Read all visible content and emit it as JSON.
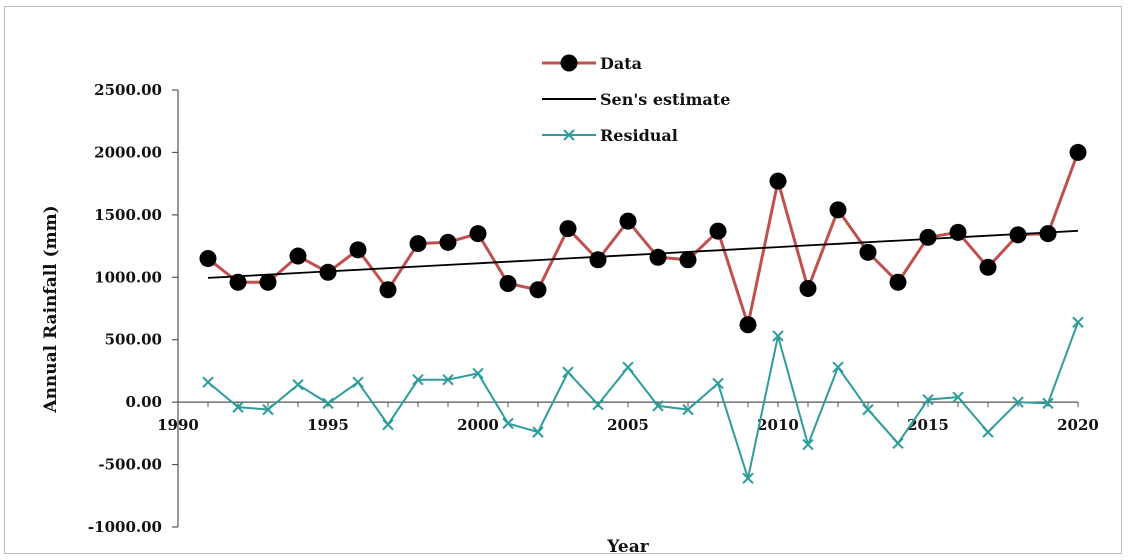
{
  "chart_data": {
    "type": "line",
    "xlabel": "Year",
    "ylabel": "Annual Rainfall (mm)",
    "xlim": [
      1990,
      2020
    ],
    "ylim": [
      -1000,
      2500
    ],
    "x_ticks": [
      1990,
      1995,
      2000,
      2005,
      2010,
      2015,
      2020
    ],
    "x_tick_labels": [
      "1990",
      "1995",
      "2000",
      "2005",
      "2010",
      "2015",
      "2020"
    ],
    "y_ticks": [
      -1000,
      -500,
      0,
      500,
      1000,
      1500,
      2000,
      2500
    ],
    "y_tick_labels": [
      "-1000.00",
      "-500.00",
      "0.00",
      "500.00",
      "1000.00",
      "1500.00",
      "2000.00",
      "2500.00"
    ],
    "grid": false,
    "legend_position": "top-center",
    "x": [
      1991,
      1992,
      1993,
      1994,
      1995,
      1996,
      1997,
      1998,
      1999,
      2000,
      2001,
      2002,
      2003,
      2004,
      2005,
      2006,
      2007,
      2008,
      2009,
      2010,
      2011,
      2012,
      2013,
      2014,
      2015,
      2016,
      2017,
      2018,
      2019,
      2020
    ],
    "series": [
      {
        "name": "Data",
        "color": "#c0504d",
        "marker": "circle",
        "marker_color": "#000000",
        "values": [
          1150,
          960,
          960,
          1170,
          1040,
          1220,
          900,
          1270,
          1280,
          1350,
          950,
          900,
          1390,
          1140,
          1450,
          1160,
          1140,
          1370,
          620,
          1770,
          910,
          1540,
          1200,
          960,
          1320,
          1360,
          1080,
          1340,
          1350,
          2000
        ]
      },
      {
        "name": "Sen's estimate",
        "color": "#000000",
        "marker": "none",
        "values": [
          995,
          1008,
          1021,
          1034,
          1047,
          1060,
          1073,
          1086,
          1099,
          1112,
          1125,
          1138,
          1151,
          1164,
          1177,
          1190,
          1203,
          1216,
          1229,
          1242,
          1255,
          1268,
          1281,
          1294,
          1307,
          1320,
          1333,
          1346,
          1359,
          1372
        ]
      },
      {
        "name": "Residual",
        "color": "#2e9c9c",
        "marker": "x",
        "values": [
          160,
          -40,
          -60,
          140,
          -10,
          160,
          -180,
          180,
          180,
          230,
          -170,
          -240,
          240,
          -20,
          280,
          -30,
          -60,
          150,
          -610,
          530,
          -340,
          280,
          -60,
          -330,
          20,
          40,
          -240,
          0,
          -10,
          640
        ]
      }
    ]
  }
}
